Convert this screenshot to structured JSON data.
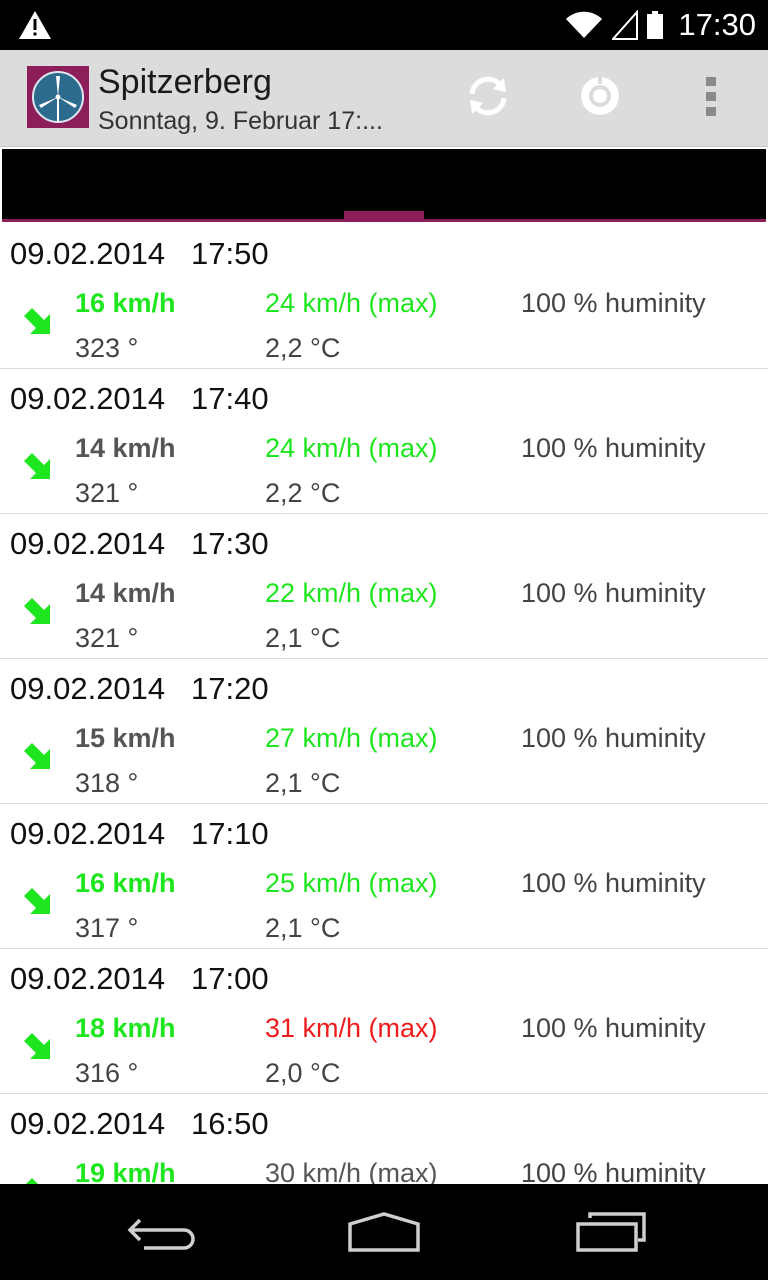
{
  "status_bar": {
    "time": "17:30",
    "icons": [
      "warning-icon",
      "wifi-icon",
      "signal-icon",
      "battery-icon"
    ]
  },
  "action_bar": {
    "title": "Spitzerberg",
    "subtitle": "Sonntag, 9. Februar 17:...",
    "actions": [
      "refresh-icon",
      "settings-dial-icon",
      "overflow-menu-icon"
    ]
  },
  "colors": {
    "accent": "#8c1f5a",
    "green": "#1ee61e",
    "red": "#ee1c1c",
    "grey": "#555555"
  },
  "entries": [
    {
      "date": "09.02.2014",
      "time": "17:50",
      "speed": "16 km/h",
      "speed_color": "green",
      "gust": "24 km/h (max)",
      "gust_color": "green",
      "humidity": "100 % huminity",
      "direction": "323 °",
      "temperature": "2,2 °C"
    },
    {
      "date": "09.02.2014",
      "time": "17:40",
      "speed": "14 km/h",
      "speed_color": "grey",
      "gust": "24 km/h (max)",
      "gust_color": "green",
      "humidity": "100 % huminity",
      "direction": "321 °",
      "temperature": "2,2 °C"
    },
    {
      "date": "09.02.2014",
      "time": "17:30",
      "speed": "14 km/h",
      "speed_color": "grey",
      "gust": "22 km/h (max)",
      "gust_color": "green",
      "humidity": "100 % huminity",
      "direction": "321 °",
      "temperature": "2,1 °C"
    },
    {
      "date": "09.02.2014",
      "time": "17:20",
      "speed": "15 km/h",
      "speed_color": "grey",
      "gust": "27 km/h (max)",
      "gust_color": "green",
      "humidity": "100 % huminity",
      "direction": "318 °",
      "temperature": "2,1 °C"
    },
    {
      "date": "09.02.2014",
      "time": "17:10",
      "speed": "16 km/h",
      "speed_color": "green",
      "gust": "25 km/h (max)",
      "gust_color": "green",
      "humidity": "100 % huminity",
      "direction": "317 °",
      "temperature": "2,1 °C"
    },
    {
      "date": "09.02.2014",
      "time": "17:00",
      "speed": "18 km/h",
      "speed_color": "green",
      "gust": "31 km/h (max)",
      "gust_color": "red",
      "humidity": "100 % huminity",
      "direction": "316 °",
      "temperature": "2,0 °C"
    },
    {
      "date": "09.02.2014",
      "time": "16:50",
      "speed": "19 km/h",
      "speed_color": "green",
      "gust": "30 km/h (max)",
      "gust_color": "grey",
      "humidity": "100 % huminity",
      "direction": "",
      "temperature": ""
    }
  ],
  "nav_bar": {
    "buttons": [
      "back-icon",
      "home-icon",
      "recent-apps-icon"
    ]
  }
}
